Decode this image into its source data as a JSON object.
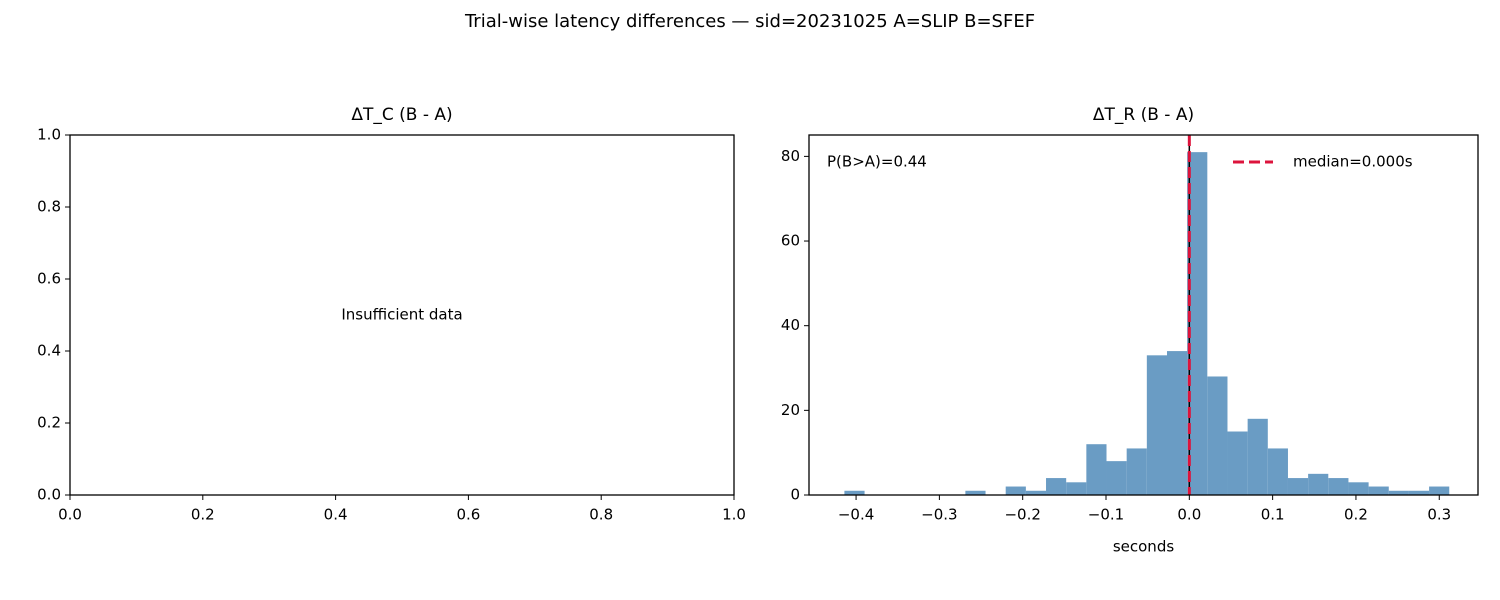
{
  "title": "Trial-wise latency differences — sid=20231025  A=SLIP  B=SFEF",
  "chart_data": [
    {
      "type": "empty",
      "title": "ΔT_C (B - A)",
      "annotation": "Insufficient data",
      "xlim": [
        0,
        1
      ],
      "ylim": [
        0,
        1
      ],
      "xticks": [
        {
          "value": 0,
          "label": "0.0"
        },
        {
          "value": 0.2,
          "label": "0.2"
        },
        {
          "value": 0.4,
          "label": "0.4"
        },
        {
          "value": 0.6,
          "label": "0.6"
        },
        {
          "value": 0.8,
          "label": "0.8"
        },
        {
          "value": 1,
          "label": "1.0"
        }
      ],
      "yticks": [
        {
          "value": 0,
          "label": "0.0"
        },
        {
          "value": 0.2,
          "label": "0.2"
        },
        {
          "value": 0.4,
          "label": "0.4"
        },
        {
          "value": 0.6,
          "label": "0.6"
        },
        {
          "value": 0.8,
          "label": "0.8"
        },
        {
          "value": 1,
          "label": "1.0"
        }
      ]
    },
    {
      "type": "histogram",
      "title": "ΔT_R (B - A)",
      "xlabel": "seconds",
      "annotation": "P(B>A)=0.44",
      "color": "#6a9cc4",
      "bins": [
        -0.414,
        -0.3898,
        -0.3656,
        -0.3414,
        -0.3172,
        -0.293,
        -0.2688,
        -0.2446,
        -0.2204,
        -0.1962,
        -0.172,
        -0.1478,
        -0.1236,
        -0.0994,
        -0.0752,
        -0.051,
        -0.0268,
        -0.0026,
        0.0216,
        0.0458,
        0.07,
        0.0942,
        0.1184,
        0.1426,
        0.1668,
        0.191,
        0.2152,
        0.2394,
        0.2636,
        0.2878,
        0.312
      ],
      "values": [
        1,
        0,
        0,
        0,
        0,
        0,
        1,
        0,
        2,
        1,
        4,
        3,
        12,
        8,
        11,
        33,
        34,
        81,
        28,
        15,
        18,
        11,
        4,
        5,
        4,
        3,
        2,
        1,
        1,
        2
      ],
      "lines": [
        {
          "x": 0,
          "color": "#000000",
          "style": "solid"
        },
        {
          "x": 0,
          "name": "median=0.000s",
          "color": "#dc143c",
          "style": "dashed"
        }
      ],
      "legend": "upper right",
      "xlim": [
        -0.4565,
        0.3465
      ],
      "ylim": [
        0,
        85.05
      ],
      "xticks": [
        {
          "value": -0.4,
          "label": "−0.4"
        },
        {
          "value": -0.3,
          "label": "−0.3"
        },
        {
          "value": -0.2,
          "label": "−0.2"
        },
        {
          "value": -0.1,
          "label": "−0.1"
        },
        {
          "value": 0,
          "label": "0.0"
        },
        0.1,
        0.2,
        0.3
      ],
      "yticks": [
        0,
        20,
        40,
        60,
        80
      ]
    }
  ]
}
